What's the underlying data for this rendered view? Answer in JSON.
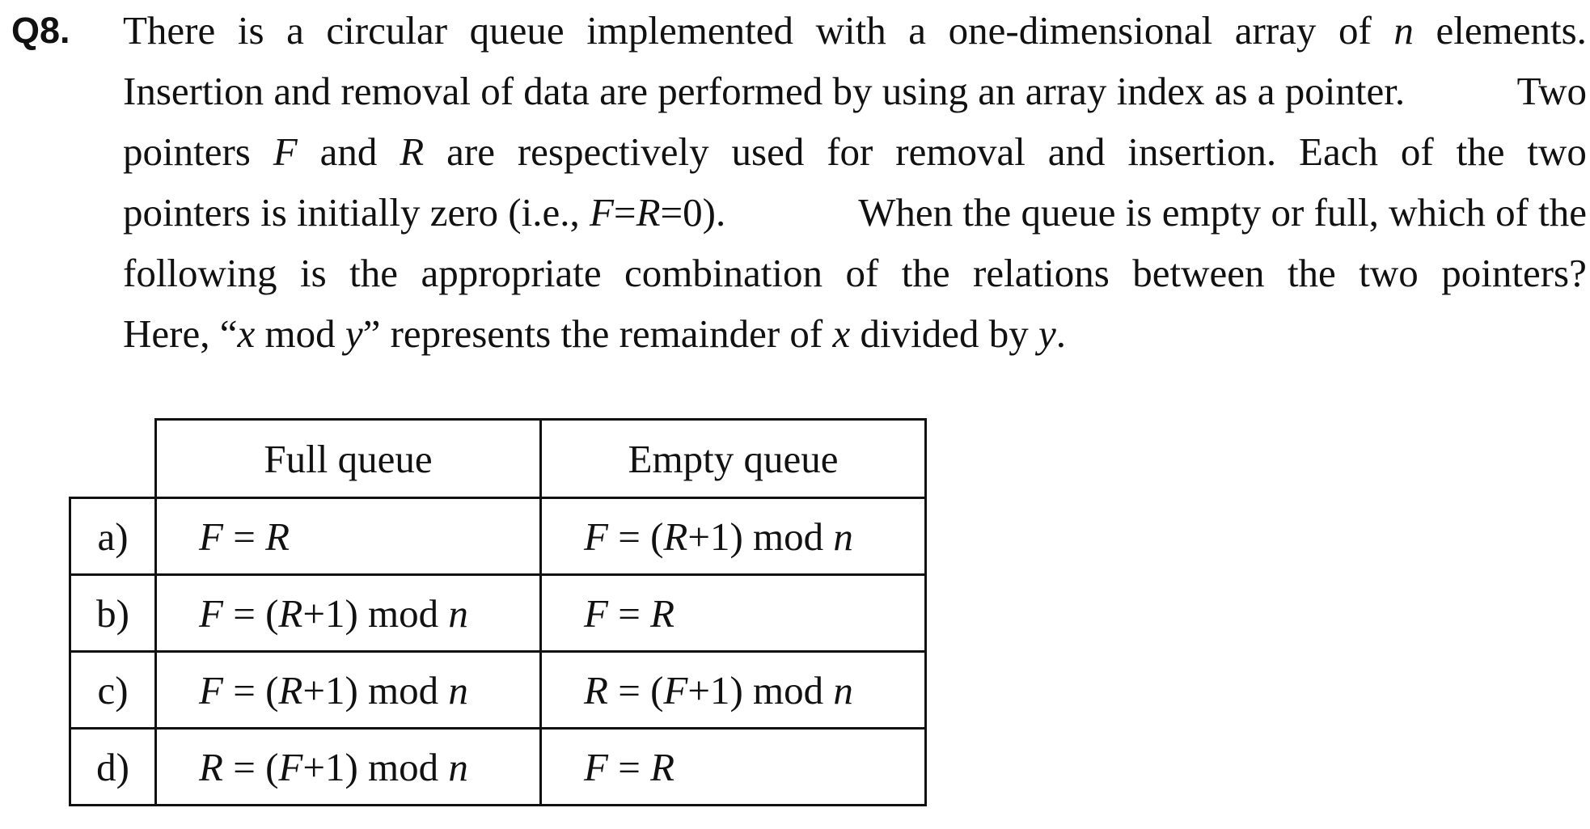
{
  "question": {
    "number": "Q8.",
    "lines": [
      [
        "There",
        "is",
        "a",
        "circular",
        "queue",
        "implemented",
        "with",
        "a",
        "one-dimensional",
        "array",
        "of",
        "n",
        "elements."
      ],
      [
        "Insertion and removal of data are performed by using an array index as a pointer.",
        "Two"
      ],
      [
        "pointers",
        "F",
        "and",
        "R",
        "are",
        "respectively",
        "used",
        "for",
        "removal",
        "and",
        "insertion.",
        "Each",
        "of",
        "the",
        "two"
      ],
      [
        "pointers is initially zero (i.e., F=R=0).",
        "When the queue is empty or full, which of the"
      ],
      [
        "following",
        "is",
        "the",
        "appropriate",
        "combination",
        "of",
        "the",
        "relations",
        "between",
        "the",
        "two",
        "pointers?"
      ],
      [
        "Here, “x mod y” represents the remainder of x divided by y."
      ]
    ]
  },
  "table": {
    "headers": [
      "Full queue",
      "Empty queue"
    ],
    "rows": [
      {
        "label": "a)",
        "full": "F = R",
        "empty": "F = (R+1) mod n"
      },
      {
        "label": "b)",
        "full": "F = (R+1) mod n",
        "empty": "F = R"
      },
      {
        "label": "c)",
        "full": "F = (R+1) mod n",
        "empty": "R = (F+1) mod n"
      },
      {
        "label": "d)",
        "full": "R = (F+1) mod n",
        "empty": "F = R"
      }
    ]
  }
}
